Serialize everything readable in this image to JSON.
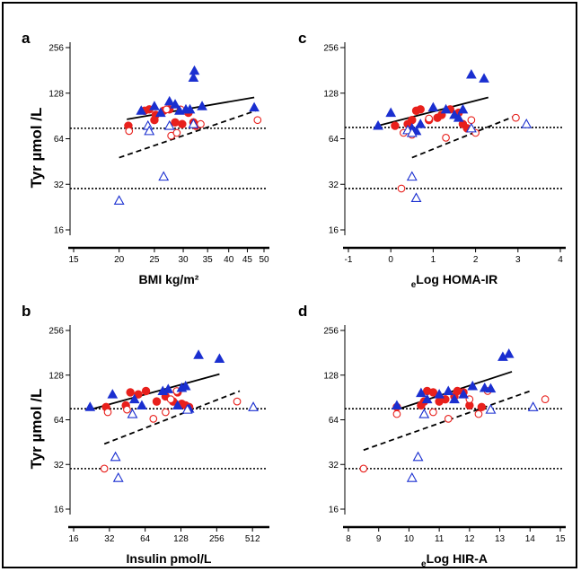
{
  "figure": {
    "ylabel": "Tyr µmol /L"
  },
  "chart_data": [
    {
      "panel": "a",
      "type": "scatter",
      "xscale": "log",
      "yscale": "log2",
      "xlabel": "BMI kg/m²",
      "xticks": [
        15,
        20,
        25,
        30,
        35,
        40,
        45,
        50
      ],
      "xlim": [
        15,
        50
      ],
      "ylabel": "Tyr µmol /L",
      "yticks": [
        16,
        32,
        64,
        128,
        256
      ],
      "ylim": [
        16,
        256
      ],
      "hlines": [
        75,
        30
      ],
      "series": [
        {
          "marker": "filled-circle",
          "color": "#e8201c",
          "points": [
            [
              21.2,
              78
            ],
            [
              23.5,
              98
            ],
            [
              24.2,
              100
            ],
            [
              25.2,
              92
            ],
            [
              25.0,
              85
            ],
            [
              26.5,
              98
            ],
            [
              28.5,
              82
            ],
            [
              29.8,
              80
            ],
            [
              31.0,
              95
            ],
            [
              32.0,
              82
            ],
            [
              32.5,
              78
            ],
            [
              27.5,
              100
            ]
          ]
        },
        {
          "marker": "open-circle",
          "color": "#e8201c",
          "points": [
            [
              21.3,
              72
            ],
            [
              27.0,
              100
            ],
            [
              27.8,
              67
            ],
            [
              28.8,
              70
            ],
            [
              29.5,
              100
            ],
            [
              33.5,
              80
            ],
            [
              48.0,
              85
            ]
          ]
        },
        {
          "marker": "filled-triangle",
          "color": "#1a2fd0",
          "points": [
            [
              23.0,
              98
            ],
            [
              25.0,
              105
            ],
            [
              26.0,
              95
            ],
            [
              27.5,
              113
            ],
            [
              28.5,
              108
            ],
            [
              29.3,
              98
            ],
            [
              30.5,
              100
            ],
            [
              31.3,
              100
            ],
            [
              32.0,
              162
            ],
            [
              32.2,
              180
            ],
            [
              33.8,
              105
            ],
            [
              47.0,
              103
            ]
          ]
        },
        {
          "marker": "open-triangle",
          "color": "#1a2fd0",
          "points": [
            [
              20.0,
              25
            ],
            [
              24.0,
              78
            ],
            [
              24.2,
              72
            ],
            [
              26.5,
              36
            ],
            [
              27.5,
              78
            ],
            [
              32.0,
              80
            ]
          ]
        }
      ],
      "fits": [
        {
          "style": "solid",
          "x1": 21.0,
          "y1": 86,
          "x2": 47.0,
          "y2": 120
        },
        {
          "style": "dashed",
          "x1": 20.0,
          "y1": 48,
          "x2": 48.0,
          "y2": 99
        }
      ]
    },
    {
      "panel": "c",
      "type": "scatter",
      "xscale": "linear",
      "yscale": "log2",
      "xlabel": "eLog HOMA-IR",
      "xsub": "e",
      "xmain": "Log HOMA-IR",
      "xticks": [
        -1,
        0,
        1,
        2,
        3,
        4
      ],
      "xlim": [
        -1,
        4
      ],
      "ylabel": "Tyr µmol /L",
      "yticks": [
        16,
        32,
        64,
        128,
        256
      ],
      "ylim": [
        16,
        256
      ],
      "hlines": [
        76,
        30
      ],
      "series": [
        {
          "marker": "filled-circle",
          "color": "#e8201c",
          "points": [
            [
              0.1,
              78
            ],
            [
              0.4,
              80
            ],
            [
              0.5,
              85
            ],
            [
              0.6,
              98
            ],
            [
              0.7,
              100
            ],
            [
              0.9,
              85
            ],
            [
              1.1,
              88
            ],
            [
              1.2,
              92
            ],
            [
              1.4,
              100
            ],
            [
              1.6,
              95
            ],
            [
              1.7,
              80
            ],
            [
              1.8,
              75
            ]
          ]
        },
        {
          "marker": "open-circle",
          "color": "#e8201c",
          "points": [
            [
              0.3,
              70
            ],
            [
              0.5,
              68
            ],
            [
              0.9,
              87
            ],
            [
              1.3,
              65
            ],
            [
              1.9,
              85
            ],
            [
              2.0,
              70
            ],
            [
              2.95,
              88
            ],
            [
              0.25,
              30
            ]
          ]
        },
        {
          "marker": "filled-triangle",
          "color": "#1a2fd0",
          "points": [
            [
              -0.3,
              78
            ],
            [
              0.0,
              95
            ],
            [
              0.5,
              75
            ],
            [
              0.7,
              80
            ],
            [
              1.0,
              103
            ],
            [
              1.3,
              100
            ],
            [
              1.5,
              92
            ],
            [
              1.6,
              88
            ],
            [
              1.7,
              100
            ],
            [
              1.9,
              170
            ],
            [
              2.2,
              160
            ],
            [
              0.6,
              72
            ]
          ]
        },
        {
          "marker": "open-triangle",
          "color": "#1a2fd0",
          "points": [
            [
              0.4,
              73
            ],
            [
              0.5,
              36
            ],
            [
              0.6,
              26
            ],
            [
              0.5,
              70
            ],
            [
              1.9,
              75
            ],
            [
              3.2,
              80
            ]
          ]
        }
      ],
      "fits": [
        {
          "style": "solid",
          "x1": -0.3,
          "y1": 78,
          "x2": 2.3,
          "y2": 120
        },
        {
          "style": "dashed",
          "x1": 0.5,
          "y1": 48,
          "x2": 3.0,
          "y2": 92
        }
      ]
    },
    {
      "panel": "b",
      "type": "scatter",
      "xscale": "log2",
      "yscale": "log2",
      "xlabel": "Insulin pmol/L",
      "xticks": [
        16,
        32,
        64,
        128,
        256,
        512
      ],
      "xlim": [
        16,
        640
      ],
      "ylabel": "Tyr µmol /L",
      "yticks": [
        16,
        32,
        64,
        128,
        256
      ],
      "ylim": [
        16,
        256
      ],
      "hlines": [
        76,
        30
      ],
      "series": [
        {
          "marker": "filled-circle",
          "color": "#e8201c",
          "points": [
            [
              30,
              78
            ],
            [
              44,
              80
            ],
            [
              48,
              98
            ],
            [
              56,
              95
            ],
            [
              65,
              100
            ],
            [
              80,
              85
            ],
            [
              95,
              92
            ],
            [
              110,
              85
            ],
            [
              120,
              98
            ],
            [
              130,
              82
            ],
            [
              140,
              80
            ],
            [
              150,
              78
            ]
          ]
        },
        {
          "marker": "open-circle",
          "color": "#e8201c",
          "points": [
            [
              29,
              30
            ],
            [
              31,
              72
            ],
            [
              45,
              75
            ],
            [
              75,
              65
            ],
            [
              95,
              72
            ],
            [
              105,
              88
            ],
            [
              118,
              100
            ],
            [
              380,
              85
            ]
          ]
        },
        {
          "marker": "filled-triangle",
          "color": "#1a2fd0",
          "points": [
            [
              22,
              78
            ],
            [
              34,
              95
            ],
            [
              52,
              88
            ],
            [
              60,
              80
            ],
            [
              90,
              100
            ],
            [
              100,
              103
            ],
            [
              120,
              80
            ],
            [
              130,
              105
            ],
            [
              140,
              108
            ],
            [
              180,
              175
            ],
            [
              270,
              165
            ],
            [
              150,
              76
            ]
          ]
        },
        {
          "marker": "open-triangle",
          "color": "#1a2fd0",
          "points": [
            [
              36,
              36
            ],
            [
              38,
              26
            ],
            [
              50,
              70
            ],
            [
              145,
              75
            ],
            [
              520,
              78
            ]
          ]
        }
      ],
      "fits": [
        {
          "style": "solid",
          "x1": 22,
          "y1": 75,
          "x2": 270,
          "y2": 130
        },
        {
          "style": "dashed",
          "x1": 29,
          "y1": 44,
          "x2": 400,
          "y2": 100
        }
      ]
    },
    {
      "panel": "d",
      "type": "scatter",
      "xscale": "linear",
      "yscale": "log2",
      "xlabel": "eLog HIR-A",
      "xsub": "e",
      "xmain": "Log HIR-A",
      "xticks": [
        8,
        9,
        10,
        11,
        12,
        13,
        14,
        15
      ],
      "xlim": [
        8,
        15
      ],
      "ylabel": "Tyr µmol /L",
      "yticks": [
        16,
        32,
        64,
        128,
        256
      ],
      "ylim": [
        16,
        256
      ],
      "hlines": [
        76,
        30
      ],
      "series": [
        {
          "marker": "filled-circle",
          "color": "#e8201c",
          "points": [
            [
              9.6,
              78
            ],
            [
              10.4,
              80
            ],
            [
              10.5,
              85
            ],
            [
              10.6,
              100
            ],
            [
              10.8,
              98
            ],
            [
              11.0,
              85
            ],
            [
              11.2,
              88
            ],
            [
              11.5,
              92
            ],
            [
              11.6,
              100
            ],
            [
              11.8,
              98
            ],
            [
              12.0,
              80
            ],
            [
              12.4,
              78
            ]
          ]
        },
        {
          "marker": "open-circle",
          "color": "#e8201c",
          "points": [
            [
              8.5,
              30
            ],
            [
              9.6,
              70
            ],
            [
              10.8,
              72
            ],
            [
              11.3,
              65
            ],
            [
              12.0,
              88
            ],
            [
              12.3,
              70
            ],
            [
              12.6,
              100
            ],
            [
              14.5,
              88
            ]
          ]
        },
        {
          "marker": "filled-triangle",
          "color": "#1a2fd0",
          "points": [
            [
              9.6,
              80
            ],
            [
              10.4,
              97
            ],
            [
              10.6,
              88
            ],
            [
              11.0,
              95
            ],
            [
              11.3,
              100
            ],
            [
              11.5,
              88
            ],
            [
              11.8,
              95
            ],
            [
              12.1,
              108
            ],
            [
              12.5,
              105
            ],
            [
              13.1,
              170
            ],
            [
              13.3,
              178
            ],
            [
              12.7,
              104
            ]
          ]
        },
        {
          "marker": "open-triangle",
          "color": "#1a2fd0",
          "points": [
            [
              10.1,
              26
            ],
            [
              10.3,
              36
            ],
            [
              10.5,
              70
            ],
            [
              12.7,
              75
            ],
            [
              14.1,
              78
            ]
          ]
        }
      ],
      "fits": [
        {
          "style": "solid",
          "x1": 9.6,
          "y1": 75,
          "x2": 13.4,
          "y2": 135
        },
        {
          "style": "dashed",
          "x1": 8.5,
          "y1": 40,
          "x2": 14.0,
          "y2": 100
        }
      ]
    }
  ]
}
